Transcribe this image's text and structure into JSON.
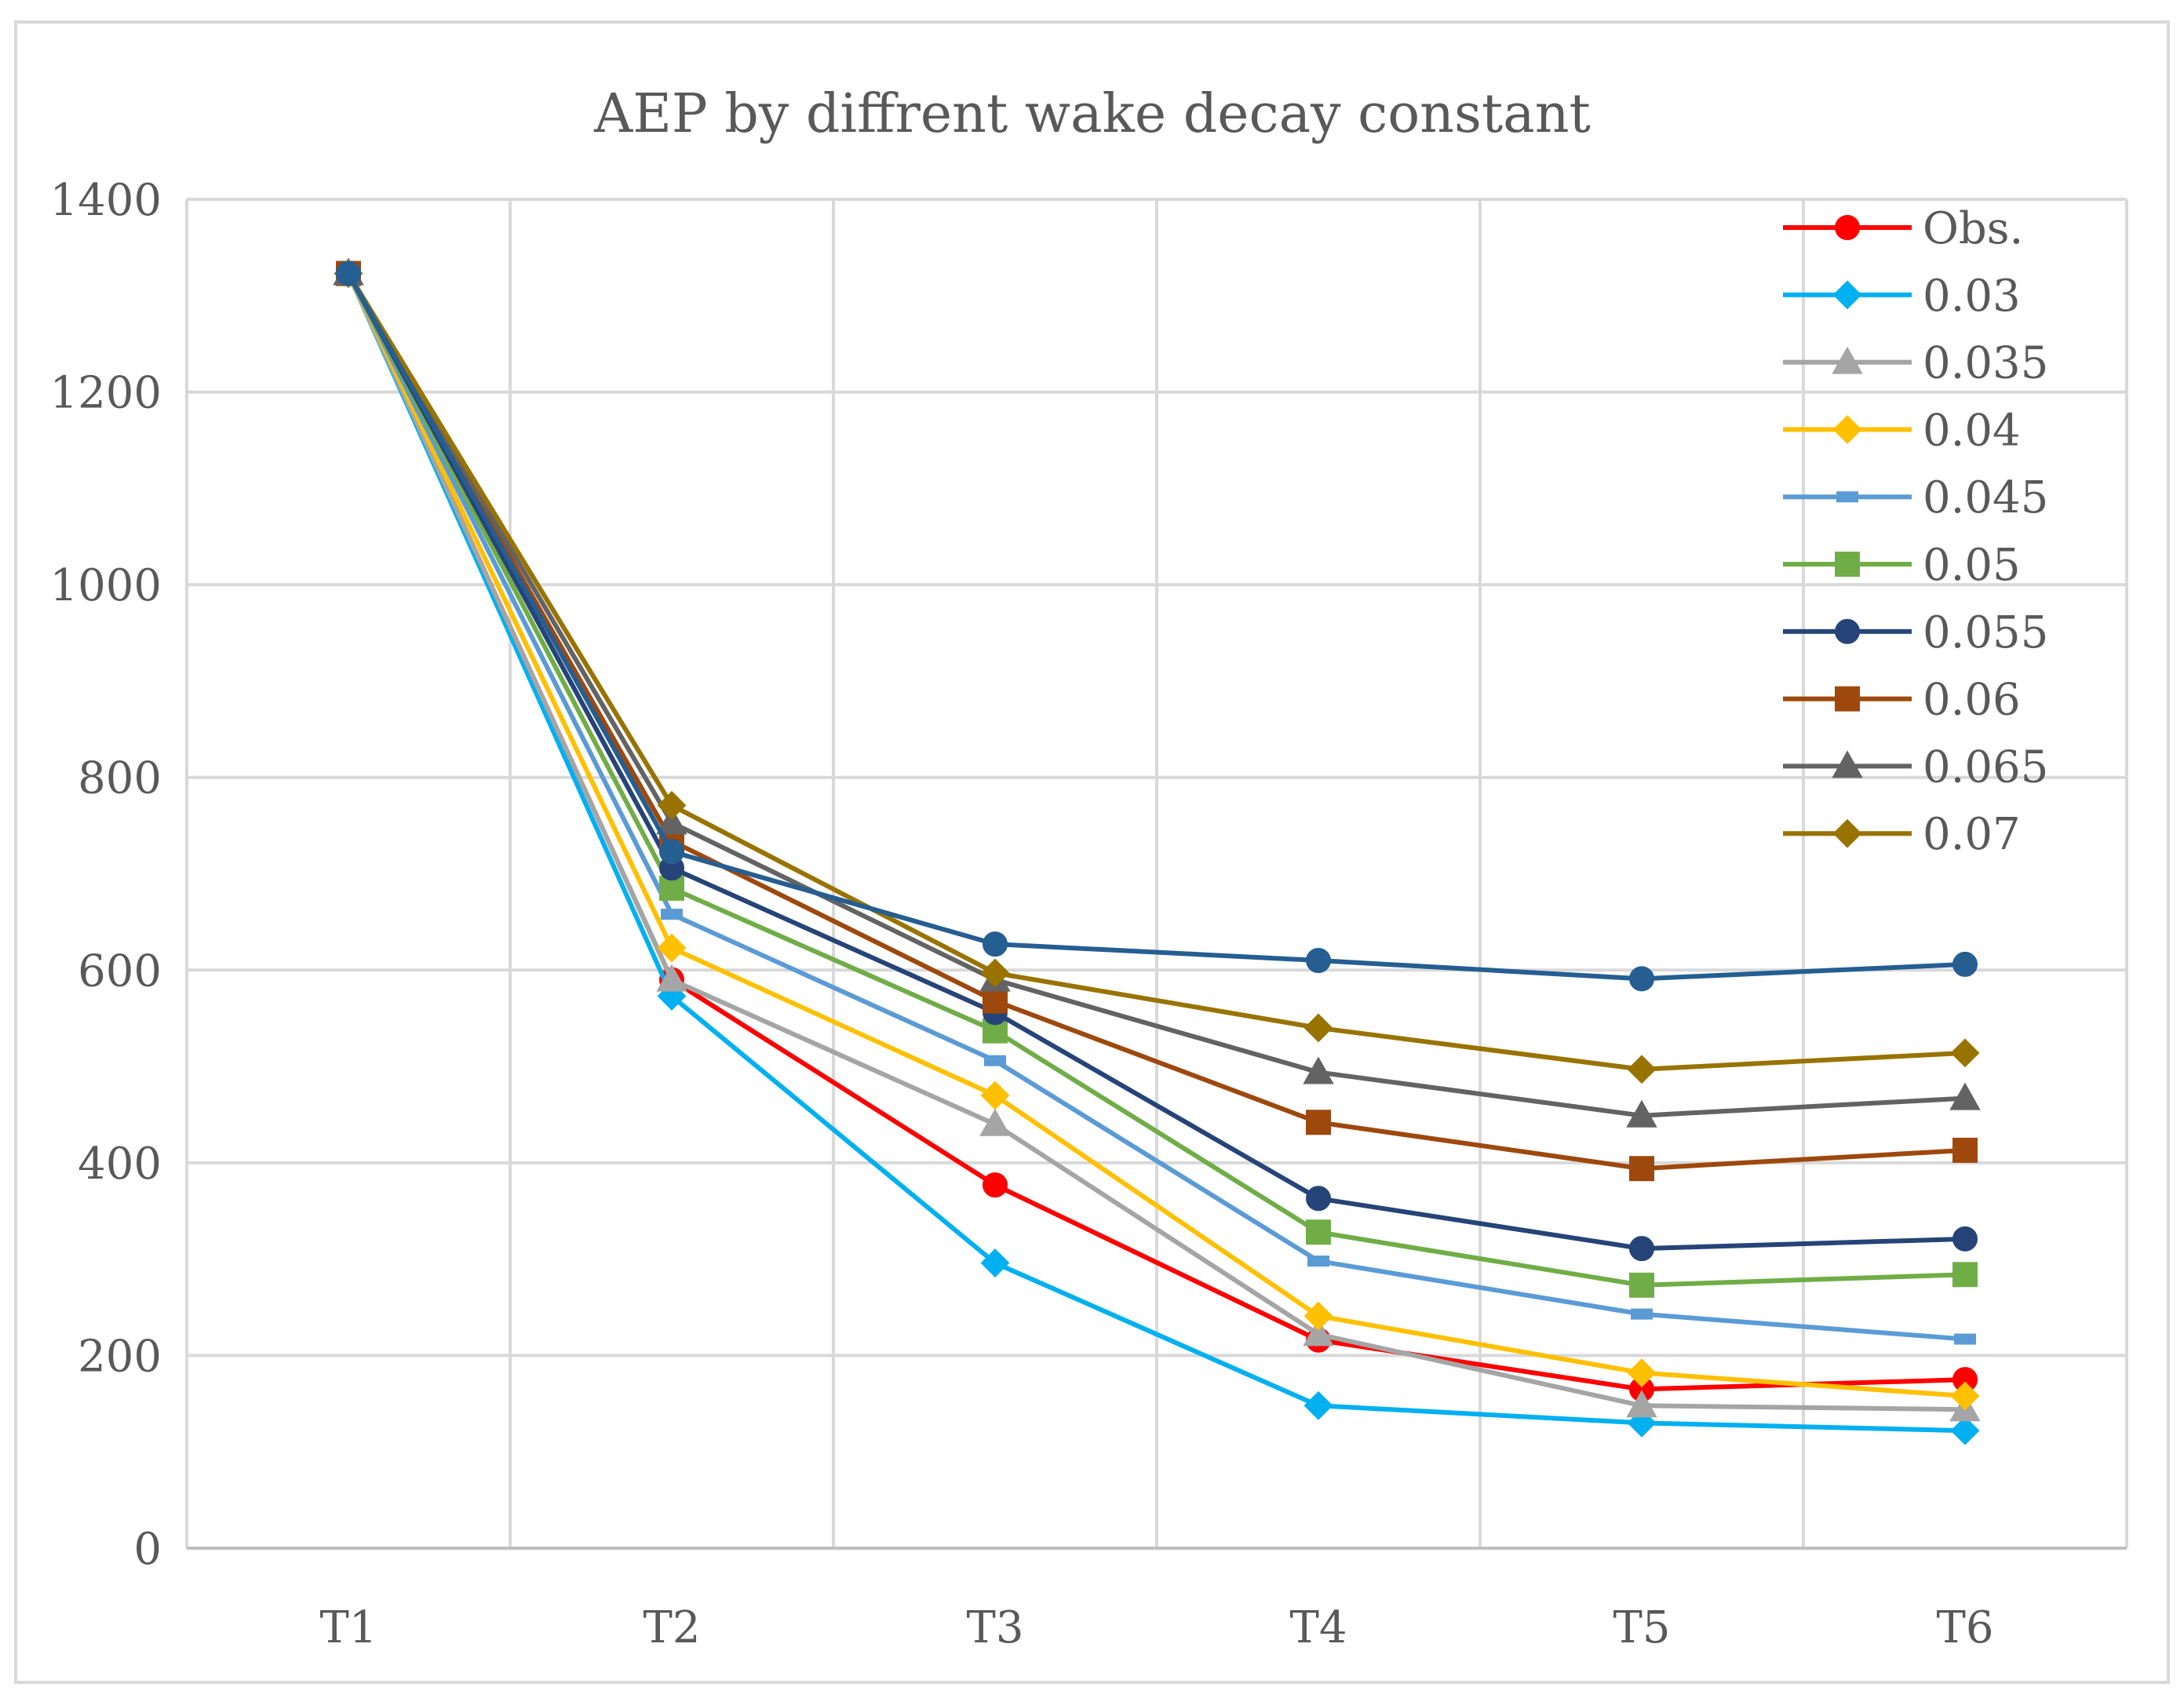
{
  "chart_data": {
    "type": "line",
    "title": "AEP by  diffrent wake decay constant",
    "xlabel": "",
    "ylabel": "",
    "categories": [
      "T1",
      "T2",
      "T3",
      "T4",
      "T5",
      "T6"
    ],
    "ylim": [
      0,
      1400
    ],
    "yticks": [
      0,
      200,
      400,
      600,
      800,
      1000,
      1200,
      1400
    ],
    "grid": true,
    "legend_position": "top-right",
    "series": [
      {
        "name": "Obs.",
        "color": "#FF0000",
        "marker": "circle",
        "values": [
          1323,
          590,
          377,
          216,
          165,
          175
        ]
      },
      {
        "name": "0.03",
        "color": "#00B0F0",
        "marker": "diamond",
        "values": [
          1323,
          573,
          296,
          148,
          130,
          122
        ]
      },
      {
        "name": "0.035",
        "color": "#A5A5A5",
        "marker": "triangle",
        "values": [
          1323,
          590,
          440,
          222,
          148,
          144
        ]
      },
      {
        "name": "0.04",
        "color": "#FFC000",
        "marker": "diamond",
        "values": [
          1323,
          623,
          470,
          241,
          182,
          158
        ]
      },
      {
        "name": "0.045",
        "color": "#5B9BD5",
        "marker": "dash",
        "values": [
          1323,
          658,
          506,
          298,
          243,
          217
        ]
      },
      {
        "name": "0.05",
        "color": "#70AD47",
        "marker": "square",
        "values": [
          1323,
          685,
          537,
          328,
          273,
          284
        ]
      },
      {
        "name": "0.055",
        "color": "#264478",
        "marker": "circle",
        "values": [
          1323,
          706,
          556,
          363,
          311,
          321
        ]
      },
      {
        "name": "0.06",
        "color": "#9E480E",
        "marker": "square",
        "values": [
          1323,
          734,
          568,
          442,
          394,
          413
        ]
      },
      {
        "name": "0.065",
        "color": "#636363",
        "marker": "triangle",
        "values": [
          1323,
          753,
          590,
          494,
          449,
          467
        ]
      },
      {
        "name": "0.07",
        "color": "#997300",
        "marker": "diamond",
        "values": [
          1323,
          771,
          597,
          540,
          497,
          514
        ]
      },
      {
        "name": "",
        "color": "#255E91",
        "marker": "circle",
        "values": [
          1323,
          723,
          627,
          610,
          591,
          606
        ]
      }
    ]
  }
}
